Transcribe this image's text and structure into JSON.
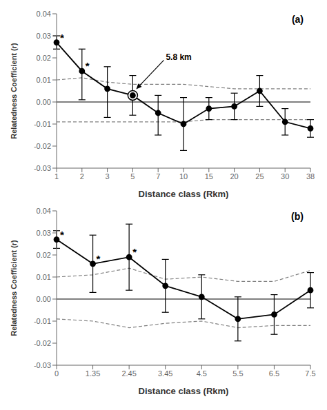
{
  "chart_data": [
    {
      "type": "line",
      "title": "(a)",
      "xlabel": "Distance class (Rkm)",
      "ylabel": "Relatedness  Coefficient (r)",
      "categories": [
        "1",
        "2",
        "3",
        "5",
        "7",
        "10",
        "15",
        "20",
        "25",
        "30",
        "38"
      ],
      "series": [
        {
          "values": [
            0.01,
            0.011,
            0.009,
            0.008,
            0.008,
            0.008,
            0.007,
            0.006,
            0.006,
            0.006,
            0.006
          ],
          "color": "gray",
          "line_style": "dashed"
        },
        {
          "values": [
            -0.009,
            -0.009,
            -0.009,
            -0.009,
            -0.009,
            -0.009,
            -0.008,
            -0.008,
            -0.008,
            -0.008,
            -0.008
          ],
          "color": "gray",
          "line_style": "dashed"
        },
        {
          "values": [
            0.027,
            0.014,
            0.006,
            0.003,
            -0.005,
            -0.01,
            -0.003,
            -0.002,
            0.005,
            -0.009,
            -0.012
          ],
          "color": "black",
          "line_style": "solid",
          "marker": "circle",
          "error_upper": [
            0.003,
            0.01,
            0.01,
            0.009,
            0.008,
            0.012,
            0.005,
            0.006,
            0.007,
            0.006,
            0.004
          ],
          "error_lower": [
            0.003,
            0.013,
            0.013,
            0.009,
            0.01,
            0.012,
            0.005,
            0.006,
            0.007,
            0.006,
            0.004
          ]
        }
      ],
      "annotations": [
        {
          "text": "*",
          "x": "1",
          "y": 0.027
        },
        {
          "text": "*",
          "x": "2",
          "y": 0.014
        },
        {
          "text": "5.8 km",
          "x": "5",
          "y": 0.003,
          "marker": "circle"
        }
      ],
      "hline": 0,
      "ylim": [
        -0.03,
        0.04
      ],
      "yticks": [
        -0.03,
        -0.02,
        -0.01,
        {
          "value": 0,
          "label": "0.00"
        },
        0.01,
        0.02,
        0.03,
        0.04
      ],
      "grid": false
    },
    {
      "type": "line",
      "title": "(b)",
      "xlabel": "Distance class (Rkm)",
      "ylabel": "Relatedness  Coefficient (r)",
      "categories": [
        "0",
        "1.35",
        "2.45",
        "3.45",
        "4.5",
        "5.5",
        "6.5",
        "7.5"
      ],
      "series": [
        {
          "values": [
            0.01,
            0.011,
            0.014,
            0.009,
            0.01,
            0.008,
            0.008,
            0.013
          ],
          "color": "gray",
          "line_style": "dashed"
        },
        {
          "values": [
            -0.009,
            -0.01,
            -0.013,
            -0.011,
            -0.01,
            -0.013,
            -0.012,
            -0.012
          ],
          "color": "gray",
          "line_style": "dashed"
        },
        {
          "values": [
            0.027,
            0.016,
            0.019,
            0.006,
            0.001,
            -0.009,
            -0.007,
            0.004
          ],
          "color": "black",
          "line_style": "solid",
          "marker": "circle",
          "error_upper": [
            0.004,
            0.013,
            0.015,
            0.012,
            0.01,
            0.01,
            0.009,
            0.008
          ],
          "error_lower": [
            0.004,
            0.013,
            0.015,
            0.012,
            0.01,
            0.01,
            0.009,
            0.008
          ]
        }
      ],
      "annotations": [
        {
          "text": "*",
          "x": "0",
          "y": 0.027
        },
        {
          "text": "*",
          "x": "1.35",
          "y": 0.016
        },
        {
          "text": "*",
          "x": "2.45",
          "y": 0.019
        }
      ],
      "hline": 0,
      "ylim": [
        -0.03,
        0.04
      ],
      "yticks": [
        -0.03,
        -0.02,
        -0.01,
        {
          "value": 0,
          "label": "0.00"
        },
        0.01,
        0.02,
        0.03,
        0.04
      ],
      "grid": false
    }
  ]
}
